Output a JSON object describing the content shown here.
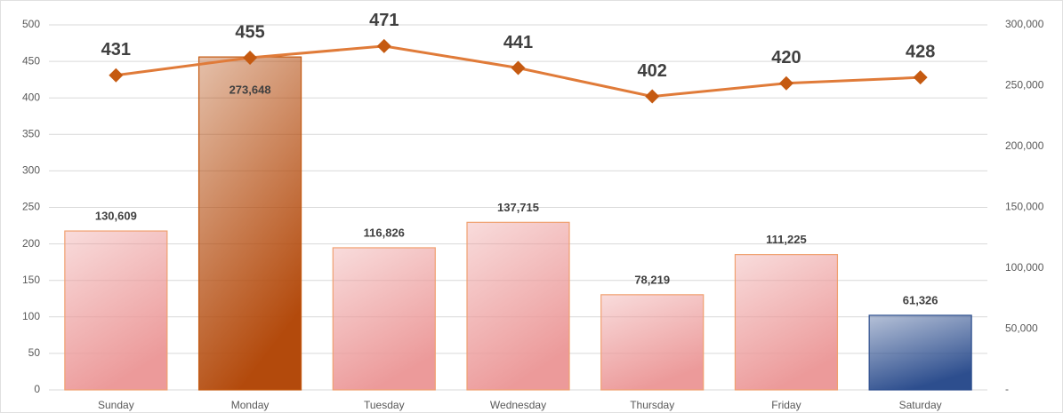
{
  "chart_data": {
    "type": "bar-line",
    "categories": [
      "Sunday",
      "Monday",
      "Tuesday",
      "Wednesday",
      "Thursday",
      "Friday",
      "Saturday"
    ],
    "series": [
      {
        "type": "bar",
        "axis": "y2",
        "values": [
          130609,
          273648,
          116826,
          137715,
          78219,
          111225,
          61326
        ],
        "value_labels": [
          "130,609",
          "273,648",
          "116,826",
          "137,715",
          "78,219",
          "111,225",
          "61,326"
        ],
        "colors": [
          "#ec9a9a",
          "#b34a0c",
          "#ec9a9a",
          "#ec9a9a",
          "#ec9a9a",
          "#ec9a9a",
          "#2d4e8e"
        ],
        "border_colors": [
          "#f0a070",
          "#c55a11",
          "#f0a070",
          "#f0a070",
          "#f0a070",
          "#f0a070",
          "#2d4e8e"
        ]
      },
      {
        "type": "line",
        "axis": "y",
        "values": [
          431,
          455,
          471,
          441,
          402,
          420,
          428
        ],
        "color": "#e07b39",
        "marker_color": "#c55a11"
      }
    ],
    "ylim": [
      0,
      500
    ],
    "yticks": [
      0,
      50,
      100,
      150,
      200,
      250,
      300,
      350,
      400,
      450,
      500
    ],
    "y2lim": [
      0,
      300000
    ],
    "y2ticks": [
      {
        "value": 0,
        "label": "-"
      },
      {
        "value": 50000,
        "label": "50,000"
      },
      {
        "value": 100000,
        "label": "100,000"
      },
      {
        "value": 150000,
        "label": "150,000"
      },
      {
        "value": 200000,
        "label": "200,000"
      },
      {
        "value": 250000,
        "label": "250,000"
      },
      {
        "value": 300000,
        "label": "300,000"
      }
    ],
    "grid": true
  }
}
